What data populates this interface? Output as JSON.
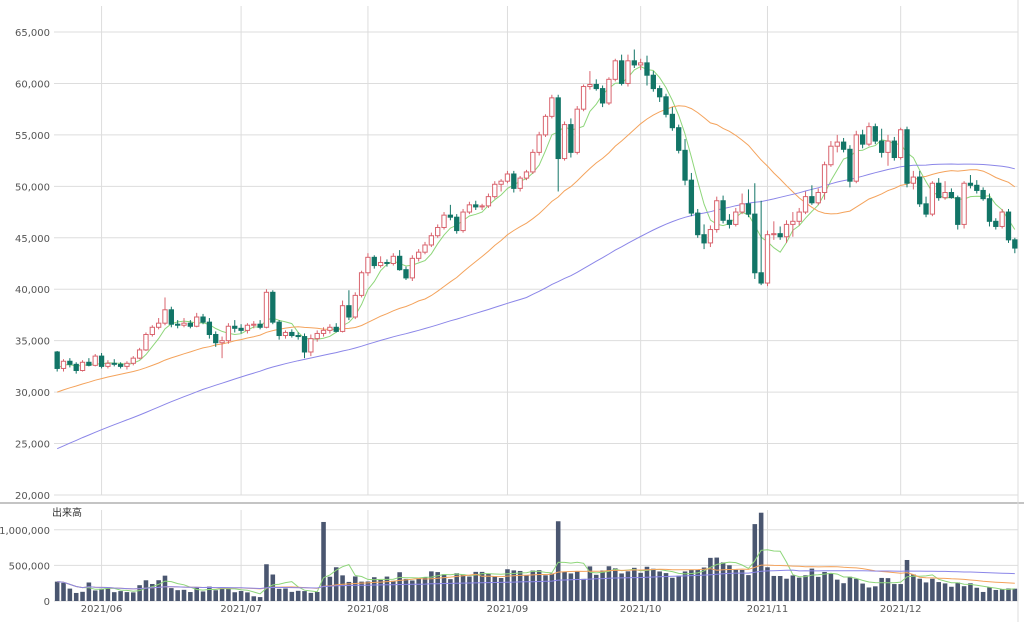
{
  "chart_data": {
    "type": "candlestick",
    "price_panel": {
      "ylim": [
        20000,
        65000
      ],
      "y_ticks": [
        "20,000",
        "25,000",
        "30,000",
        "35,000",
        "40,000",
        "45,000",
        "50,000",
        "55,000",
        "60,000",
        "65,000"
      ],
      "candles": [
        [
          33900,
          34000,
          32000,
          32300
        ],
        [
          32300,
          33200,
          32000,
          33000
        ],
        [
          33000,
          33300,
          32400,
          32700
        ],
        [
          32700,
          32900,
          31800,
          32100
        ],
        [
          32100,
          33100,
          32000,
          32900
        ],
        [
          32900,
          33300,
          32500,
          32600
        ],
        [
          32600,
          33700,
          32500,
          33500
        ],
        [
          33500,
          33800,
          32300,
          32500
        ],
        [
          32500,
          33100,
          32300,
          32800
        ],
        [
          32800,
          33200,
          32500,
          32700
        ],
        [
          32700,
          32900,
          32300,
          32500
        ],
        [
          32500,
          33000,
          32200,
          32800
        ],
        [
          32800,
          33500,
          32600,
          33300
        ],
        [
          33300,
          34300,
          33200,
          34100
        ],
        [
          34100,
          35800,
          34000,
          35600
        ],
        [
          35600,
          36500,
          35400,
          36300
        ],
        [
          36300,
          37200,
          36100,
          36700
        ],
        [
          36700,
          39200,
          36500,
          38000
        ],
        [
          38000,
          38300,
          36300,
          36600
        ],
        [
          36600,
          37000,
          36200,
          36500
        ],
        [
          36500,
          37200,
          36300,
          36700
        ],
        [
          36700,
          37000,
          36200,
          36400
        ],
        [
          36400,
          37700,
          36300,
          37300
        ],
        [
          37300,
          37600,
          36600,
          36800
        ],
        [
          36800,
          37200,
          35200,
          35600
        ],
        [
          35600,
          35900,
          34400,
          34800
        ],
        [
          34800,
          35400,
          33300,
          35000
        ],
        [
          35000,
          36700,
          34700,
          36400
        ],
        [
          36400,
          37000,
          35800,
          36200
        ],
        [
          36200,
          36600,
          35700,
          36000
        ],
        [
          36000,
          36700,
          35700,
          36500
        ],
        [
          36500,
          36900,
          36200,
          36600
        ],
        [
          36600,
          37000,
          36100,
          36300
        ],
        [
          36300,
          40000,
          36200,
          39700
        ],
        [
          39700,
          39900,
          36600,
          36800
        ],
        [
          36800,
          37000,
          35100,
          35500
        ],
        [
          35500,
          36000,
          35200,
          35800
        ],
        [
          35800,
          36100,
          35300,
          35500
        ],
        [
          35500,
          35800,
          35100,
          35400
        ],
        [
          35400,
          35700,
          33300,
          33900
        ],
        [
          33900,
          35600,
          33500,
          35200
        ],
        [
          35200,
          36000,
          34900,
          35700
        ],
        [
          35700,
          36300,
          35400,
          36000
        ],
        [
          36000,
          36600,
          35700,
          36300
        ],
        [
          36300,
          36700,
          35800,
          35900
        ],
        [
          35900,
          38900,
          35800,
          38400
        ],
        [
          38400,
          39900,
          37000,
          37300
        ],
        [
          37300,
          39700,
          37100,
          39400
        ],
        [
          39400,
          41800,
          39200,
          41600
        ],
        [
          41600,
          43500,
          41300,
          43100
        ],
        [
          43100,
          43300,
          42000,
          42300
        ],
        [
          42300,
          43200,
          42100,
          42600
        ],
        [
          42600,
          42900,
          42200,
          42500
        ],
        [
          42500,
          43500,
          42300,
          43200
        ],
        [
          43200,
          43800,
          41800,
          41900
        ],
        [
          41900,
          42200,
          40900,
          41100
        ],
        [
          41100,
          43300,
          40800,
          43000
        ],
        [
          43000,
          43900,
          42700,
          43600
        ],
        [
          43600,
          44600,
          43400,
          44300
        ],
        [
          44300,
          45500,
          44100,
          45200
        ],
        [
          45200,
          46300,
          45000,
          46000
        ],
        [
          46000,
          47500,
          45800,
          47200
        ],
        [
          47200,
          48200,
          46700,
          47000
        ],
        [
          47000,
          47300,
          45400,
          45700
        ],
        [
          45700,
          47800,
          45500,
          47500
        ],
        [
          47500,
          48500,
          47300,
          48200
        ],
        [
          48200,
          48600,
          47700,
          48000
        ],
        [
          48000,
          48300,
          47700,
          48100
        ],
        [
          48100,
          49300,
          47900,
          49000
        ],
        [
          49000,
          50500,
          48800,
          50200
        ],
        [
          50200,
          50700,
          49500,
          50500
        ],
        [
          50500,
          51500,
          50300,
          51200
        ],
        [
          51200,
          51500,
          49400,
          49800
        ],
        [
          49800,
          51000,
          49500,
          50800
        ],
        [
          50800,
          51600,
          50600,
          51400
        ],
        [
          51400,
          53600,
          51200,
          53300
        ],
        [
          53300,
          55300,
          53000,
          55000
        ],
        [
          55000,
          57000,
          54800,
          56800
        ],
        [
          56800,
          58900,
          56600,
          58600
        ],
        [
          58600,
          58900,
          49500,
          52700
        ],
        [
          52700,
          56300,
          52500,
          56000
        ],
        [
          56000,
          56600,
          52800,
          53300
        ],
        [
          53300,
          57800,
          53100,
          57500
        ],
        [
          57500,
          59900,
          57300,
          59700
        ],
        [
          59700,
          61200,
          59400,
          59900
        ],
        [
          59900,
          60400,
          59300,
          59500
        ],
        [
          59500,
          59800,
          57700,
          58100
        ],
        [
          58100,
          60600,
          57900,
          60400
        ],
        [
          60400,
          62400,
          60200,
          62200
        ],
        [
          62200,
          62800,
          59800,
          60000
        ],
        [
          60000,
          62800,
          59700,
          62200
        ],
        [
          62200,
          63300,
          61500,
          61800
        ],
        [
          61800,
          62400,
          61300,
          62000
        ],
        [
          62000,
          62700,
          59800,
          60800
        ],
        [
          60800,
          61200,
          59200,
          59500
        ],
        [
          59500,
          59800,
          58200,
          58700
        ],
        [
          58700,
          59000,
          56700,
          57000
        ],
        [
          57000,
          57700,
          55400,
          55700
        ],
        [
          55700,
          56000,
          53200,
          53500
        ],
        [
          53500,
          54600,
          50100,
          50600
        ],
        [
          50600,
          51300,
          47100,
          47400
        ],
        [
          47400,
          47800,
          45000,
          45300
        ],
        [
          45300,
          46300,
          43900,
          44500
        ],
        [
          44500,
          46200,
          44100,
          45800
        ],
        [
          45800,
          49000,
          45500,
          48600
        ],
        [
          48600,
          49100,
          46400,
          46700
        ],
        [
          46700,
          47300,
          45900,
          46300
        ],
        [
          46300,
          47900,
          46100,
          47500
        ],
        [
          47500,
          49300,
          47300,
          48300
        ],
        [
          48300,
          49700,
          47000,
          47300
        ],
        [
          47300,
          50300,
          41000,
          41600
        ],
        [
          41600,
          48600,
          40400,
          40600
        ],
        [
          40600,
          45700,
          40300,
          45300
        ],
        [
          45300,
          46600,
          44800,
          45400
        ],
        [
          45400,
          46100,
          44800,
          45100
        ],
        [
          45100,
          46700,
          44500,
          46300
        ],
        [
          46300,
          47500,
          45100,
          46600
        ],
        [
          46600,
          47900,
          46200,
          47500
        ],
        [
          47500,
          49500,
          47300,
          49000
        ],
        [
          49000,
          50100,
          48200,
          48400
        ],
        [
          48400,
          49800,
          48200,
          49400
        ],
        [
          49400,
          52400,
          48700,
          52100
        ],
        [
          52100,
          54400,
          51900,
          53900
        ],
        [
          53900,
          55000,
          53300,
          54300
        ],
        [
          54300,
          54700,
          53300,
          53600
        ],
        [
          53600,
          54000,
          49900,
          50500
        ],
        [
          50500,
          55400,
          50300,
          55000
        ],
        [
          55000,
          55500,
          53700,
          54100
        ],
        [
          54100,
          56200,
          53900,
          55800
        ],
        [
          55800,
          56100,
          54100,
          54400
        ],
        [
          54400,
          55600,
          52800,
          53300
        ],
        [
          53300,
          55000,
          52000,
          54400
        ],
        [
          54400,
          54800,
          52500,
          52800
        ],
        [
          52800,
          55700,
          52600,
          55500
        ],
        [
          55500,
          55800,
          49900,
          50300
        ],
        [
          50300,
          51500,
          49700,
          50900
        ],
        [
          50900,
          51500,
          48000,
          48300
        ],
        [
          48300,
          49000,
          47000,
          47300
        ],
        [
          47300,
          50500,
          47100,
          50300
        ],
        [
          50300,
          50800,
          48600,
          48900
        ],
        [
          48900,
          50500,
          48700,
          49400
        ],
        [
          49400,
          49800,
          48800,
          48900
        ],
        [
          48900,
          49100,
          45800,
          46300
        ],
        [
          46300,
          50500,
          45900,
          50300
        ],
        [
          50300,
          51100,
          49800,
          50100
        ],
        [
          50100,
          50600,
          49300,
          49600
        ],
        [
          49600,
          49900,
          48600,
          48800
        ],
        [
          48800,
          49300,
          46100,
          46600
        ],
        [
          46600,
          46900,
          45800,
          46100
        ],
        [
          46100,
          47800,
          45900,
          47500
        ],
        [
          47500,
          47800,
          44500,
          44800
        ],
        [
          44800,
          45000,
          43500,
          44000
        ]
      ]
    },
    "volume_panel": {
      "title": "出来高",
      "ylim": [
        0,
        1250000
      ],
      "y_ticks": [
        "0",
        "500,000",
        "1,000,000"
      ],
      "volumes": [
        272000,
        255000,
        174000,
        113000,
        129000,
        260000,
        148000,
        172000,
        182000,
        124000,
        139000,
        125000,
        121000,
        222000,
        291000,
        239000,
        292000,
        356000,
        181000,
        152000,
        157000,
        126000,
        193000,
        134000,
        203000,
        151000,
        194000,
        179000,
        123000,
        140000,
        121000,
        66000,
        55000,
        516000,
        372000,
        171000,
        176000,
        128000,
        143000,
        139000,
        114000,
        127000,
        1110000,
        341000,
        474000,
        360000,
        268000,
        345000,
        272000,
        274000,
        334000,
        295000,
        343000,
        283000,
        404000,
        310000,
        288000,
        330000,
        335000,
        416000,
        406000,
        376000,
        307000,
        390000,
        374000,
        344000,
        409000,
        409000,
        385000,
        349000,
        323000,
        446000,
        430000,
        422000,
        364000,
        428000,
        433000,
        361000,
        386000,
        1120000,
        411000,
        387000,
        420000,
        311000,
        486000,
        368000,
        429000,
        488000,
        459000,
        387000,
        417000,
        466000,
        396000,
        481000,
        453000,
        415000,
        392000,
        326000,
        355000,
        415000,
        442000,
        437000,
        470000,
        606000,
        610000,
        542000,
        502000,
        438000,
        436000,
        364000,
        1080000,
        1240000,
        474000,
        352000,
        351000,
        313000,
        359000,
        328000,
        361000,
        455000,
        339000,
        408000,
        385000,
        300000,
        250000,
        340000,
        312000,
        245000,
        190000,
        206000,
        324000,
        321000,
        238000,
        238000,
        576000,
        373000,
        313000,
        261000,
        312000,
        266000,
        247000,
        200000,
        260000,
        208000,
        249000,
        186000,
        127000,
        192000,
        155000,
        164000,
        176000,
        173000
      ]
    },
    "x_ticks": [
      {
        "label": "2021/06",
        "index": 7
      },
      {
        "label": "2021/07",
        "index": 29
      },
      {
        "label": "2021/08",
        "index": 49
      },
      {
        "label": "2021/09",
        "index": 71
      },
      {
        "label": "2021/10",
        "index": 92
      },
      {
        "label": "2021/11",
        "index": 112
      },
      {
        "label": "2021/12",
        "index": 133
      }
    ],
    "moving_averages": [
      "5",
      "25",
      "75"
    ],
    "grid": true
  },
  "colors": {
    "candle_up": "#d9646e",
    "candle_up_fill": "#ffffff",
    "candle_down": "#127567",
    "ma_short": "#8ed67a",
    "ma_medium": "#f4a35c",
    "ma_long": "#8b86e8",
    "volume_bar": "#4a5670",
    "grid": "#dddddd",
    "axis_text": "#555555",
    "divider": "#888888"
  }
}
